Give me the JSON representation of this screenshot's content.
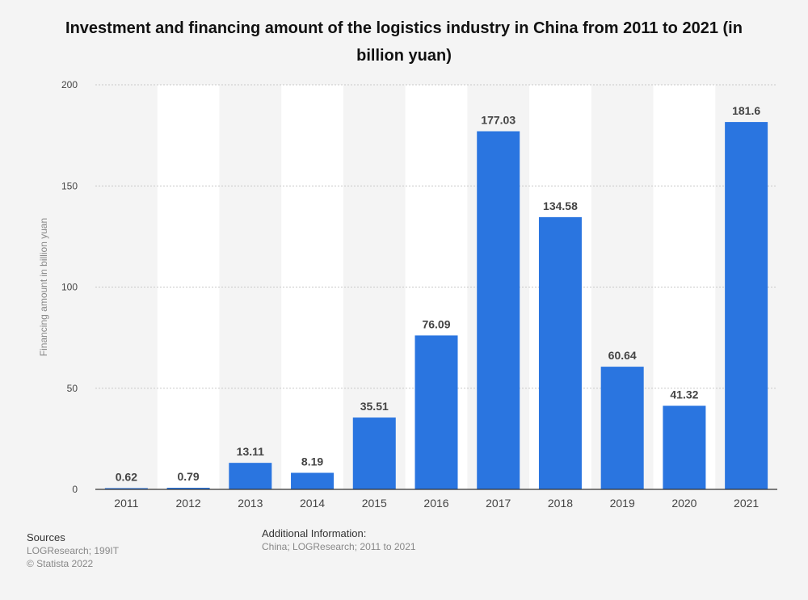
{
  "chart_data": {
    "type": "bar",
    "title": "Investment and financing amount of the logistics industry in China from 2011 to 2021 (in billion yuan)",
    "xlabel": "",
    "ylabel": "Financing amount in billion yuan",
    "ylim": [
      0,
      200
    ],
    "yticks": [
      0,
      50,
      100,
      150,
      200
    ],
    "categories": [
      "2011",
      "2012",
      "2013",
      "2014",
      "2015",
      "2016",
      "2017",
      "2018",
      "2019",
      "2020",
      "2021"
    ],
    "values": [
      0.62,
      0.79,
      13.11,
      8.19,
      35.51,
      76.09,
      177.03,
      134.58,
      60.64,
      41.32,
      181.6
    ],
    "value_labels": [
      "0.62",
      "0.79",
      "13.11",
      "8.19",
      "35.51",
      "76.09",
      "177.03",
      "134.58",
      "60.64",
      "41.32",
      "181.6"
    ],
    "grid": true,
    "colors": {
      "bar": "#2a75e0",
      "band": "#ffffff",
      "grid": "#c8c8c8",
      "axis": "#333333",
      "label": "#444444",
      "tick": "#444444"
    }
  },
  "footer": {
    "sources_heading": "Sources",
    "sources_line1": "LOGResearch; 199IT",
    "sources_line2": "© Statista 2022",
    "additional_heading": "Additional Information:",
    "additional_text": "China; LOGResearch; 2011 to 2021"
  }
}
